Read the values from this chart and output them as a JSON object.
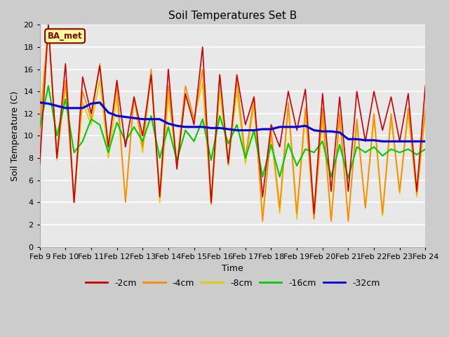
{
  "title": "Soil Temperatures Set B",
  "xlabel": "Time",
  "ylabel": "Soil Temperature (C)",
  "ylim": [
    0,
    20
  ],
  "annotation_text": "BA_met",
  "colors": {
    "-2cm": "#cc0000",
    "-4cm": "#ff8800",
    "-8cm": "#ddcc00",
    "-16cm": "#00cc00",
    "-32cm": "#0000dd"
  },
  "x_ticks": [
    "Feb 9",
    "Feb 10",
    "Feb 11",
    "Feb 12",
    "Feb 13",
    "Feb 14",
    "Feb 15",
    "Feb 16",
    "Feb 17",
    "Feb 18",
    "Feb 19",
    "Feb 20",
    "Feb 21",
    "Feb 22",
    "Feb 23",
    "Feb 24"
  ],
  "n_days": 16,
  "series": {
    "-2cm": [
      7.5,
      20.0,
      8.0,
      16.5,
      4.0,
      15.3,
      12.0,
      16.3,
      9.0,
      15.0,
      9.0,
      13.5,
      10.0,
      15.5,
      4.5,
      16.0,
      7.0,
      13.8,
      11.0,
      18.0,
      4.0,
      15.5,
      7.5,
      15.5,
      11.0,
      13.5,
      4.5,
      11.0,
      9.0,
      14.0,
      10.5,
      14.2,
      3.0,
      13.8,
      5.0,
      13.5,
      5.0,
      14.0,
      9.5,
      14.0,
      10.5,
      13.5,
      9.5,
      13.8,
      5.0,
      14.5
    ],
    "-4cm": [
      10.2,
      20.0,
      8.0,
      15.0,
      4.0,
      14.0,
      11.5,
      16.5,
      9.0,
      14.5,
      4.0,
      13.5,
      9.0,
      16.0,
      4.5,
      14.5,
      7.5,
      14.5,
      11.5,
      16.0,
      3.8,
      15.5,
      7.5,
      15.0,
      8.0,
      13.5,
      2.3,
      10.5,
      3.5,
      13.0,
      3.0,
      12.5,
      2.5,
      12.5,
      2.3,
      12.0,
      2.3,
      11.5,
      3.5,
      12.0,
      3.0,
      12.0,
      5.0,
      12.5,
      4.8,
      12.5
    ],
    "-8cm": [
      11.5,
      20.0,
      7.8,
      14.5,
      4.2,
      13.0,
      11.0,
      15.0,
      8.0,
      13.5,
      4.2,
      13.5,
      8.5,
      15.5,
      4.0,
      13.5,
      7.3,
      13.5,
      11.5,
      14.8,
      3.8,
      14.0,
      7.3,
      14.0,
      7.5,
      12.8,
      2.8,
      10.0,
      3.0,
      12.5,
      2.5,
      12.0,
      2.5,
      11.5,
      2.3,
      11.5,
      2.5,
      11.0,
      3.5,
      11.5,
      2.8,
      11.5,
      4.8,
      12.0,
      4.5,
      12.0
    ],
    "-16cm": [
      10.8,
      14.5,
      10.0,
      13.3,
      8.5,
      9.5,
      11.5,
      11.0,
      8.5,
      11.2,
      9.5,
      10.8,
      9.5,
      11.8,
      8.0,
      10.8,
      7.8,
      10.5,
      9.5,
      11.5,
      7.8,
      11.8,
      9.3,
      11.0,
      8.0,
      10.5,
      6.3,
      9.2,
      6.3,
      9.3,
      7.3,
      8.8,
      8.5,
      9.5,
      6.3,
      9.2,
      6.2,
      9.0,
      8.5,
      9.0,
      8.2,
      8.8,
      8.5,
      8.8,
      8.3,
      8.8
    ],
    "-32cm": [
      13.0,
      12.9,
      12.7,
      12.5,
      12.5,
      12.5,
      12.9,
      13.0,
      12.1,
      11.8,
      11.7,
      11.6,
      11.5,
      11.5,
      11.5,
      11.1,
      10.9,
      10.8,
      10.8,
      10.8,
      10.7,
      10.7,
      10.6,
      10.5,
      10.5,
      10.5,
      10.6,
      10.6,
      10.8,
      10.8,
      10.8,
      10.9,
      10.5,
      10.4,
      10.4,
      10.3,
      9.7,
      9.7,
      9.6,
      9.6,
      9.5,
      9.5,
      9.5,
      9.5,
      9.5,
      9.5
    ]
  }
}
